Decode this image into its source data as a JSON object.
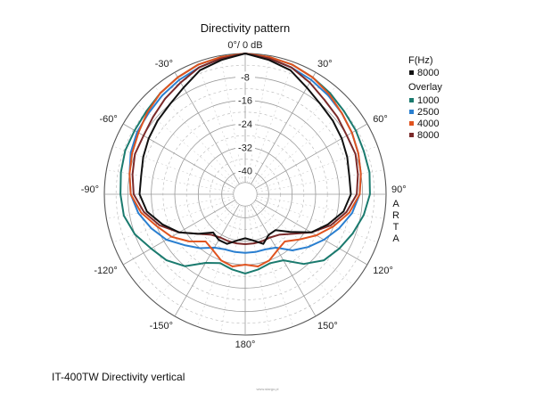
{
  "chart_data": {
    "type": "polar",
    "title": "Directivity pattern",
    "angle_labels": [
      "0°/ 0 dB",
      "30°",
      "60°",
      "90°",
      "120°",
      "150°",
      "180°",
      "150°",
      "120°",
      "90°",
      "60°",
      "30°"
    ],
    "angle_labels_signed": [
      "0°/ 0 dB",
      "30°",
      "60°",
      "90°",
      "120°",
      "150°",
      "180°",
      "-150°",
      "-120°",
      "-90°",
      "-60°",
      "-30°"
    ],
    "ring_labels": [
      "-8",
      "-16",
      "-24",
      "-32",
      "-40"
    ],
    "r_range_db": [
      -48,
      0
    ],
    "side_label": "ARTA",
    "legend": {
      "header1": "F(Hz)",
      "main": [
        {
          "name": "8000",
          "color": "#111111"
        }
      ],
      "header2": "Overlay",
      "overlay": [
        {
          "name": "1000",
          "color": "#1a7a6e"
        },
        {
          "name": "2500",
          "color": "#2a7fd0"
        },
        {
          "name": "4000",
          "color": "#e0531f"
        },
        {
          "name": "8000",
          "color": "#7a2a2a"
        }
      ]
    },
    "series": [
      {
        "name": "1000",
        "color": "#1a7a6e",
        "angles_deg": [
          0,
          10,
          20,
          30,
          40,
          50,
          60,
          70,
          80,
          90,
          100,
          110,
          120,
          130,
          140,
          150,
          160,
          170,
          180
        ],
        "right_db": [
          0,
          -0.5,
          -1,
          -2,
          -3,
          -4,
          -4.5,
          -5,
          -5,
          -5.5,
          -7,
          -9,
          -11,
          -13,
          -17,
          -22,
          -23,
          -22,
          -21
        ],
        "left_db": [
          0,
          -0.5,
          -1,
          -2,
          -3,
          -4,
          -4.5,
          -4.5,
          -5,
          -5.5,
          -6,
          -8,
          -11,
          -13,
          -16,
          -21,
          -23,
          -22,
          -21
        ]
      },
      {
        "name": "2500",
        "color": "#2a7fd0",
        "angles_deg": [
          0,
          10,
          20,
          30,
          40,
          50,
          60,
          70,
          80,
          90,
          100,
          110,
          120,
          130,
          140,
          150,
          160,
          170,
          180
        ],
        "right_db": [
          0,
          -1,
          -2,
          -3,
          -4,
          -5,
          -6,
          -7,
          -8,
          -9,
          -11,
          -14,
          -17,
          -20,
          -23,
          -27,
          -28,
          -28,
          -28
        ],
        "left_db": [
          0,
          -1,
          -2,
          -3,
          -4,
          -5,
          -5.5,
          -6.5,
          -8,
          -9,
          -11,
          -14,
          -17,
          -21,
          -24,
          -27,
          -28,
          -28,
          -28
        ]
      },
      {
        "name": "4000",
        "color": "#e0531f",
        "angles_deg": [
          0,
          10,
          20,
          30,
          40,
          50,
          60,
          70,
          80,
          90,
          100,
          110,
          120,
          130,
          140,
          150,
          160,
          170,
          180
        ],
        "right_db": [
          0,
          -0.5,
          -1,
          -2,
          -3.5,
          -5,
          -6,
          -7,
          -8,
          -9,
          -12,
          -16,
          -20,
          -24,
          -27,
          -26,
          -24,
          -23,
          -24
        ],
        "left_db": [
          0,
          -0.5,
          -1,
          -2,
          -3,
          -4.5,
          -6,
          -7,
          -8,
          -9,
          -12,
          -16,
          -19,
          -23,
          -27,
          -26,
          -24,
          -23,
          -24
        ]
      },
      {
        "name": "8000",
        "color": "#7a2a2a",
        "angles_deg": [
          0,
          10,
          20,
          30,
          40,
          50,
          60,
          70,
          80,
          90,
          100,
          110,
          120,
          130,
          140,
          150,
          160,
          170,
          180
        ],
        "right_db": [
          0,
          -1,
          -2,
          -4,
          -6,
          -7,
          -8,
          -8,
          -9,
          -10,
          -13,
          -17,
          -22,
          -27,
          -30,
          -31,
          -31,
          -31,
          -31
        ],
        "left_db": [
          0,
          -1,
          -2,
          -4,
          -5.5,
          -7,
          -8,
          -8,
          -9,
          -10,
          -13,
          -17,
          -22,
          -27,
          -30,
          -31,
          -31,
          -31,
          -31
        ]
      },
      {
        "name": "8000 (F)",
        "color": "#111111",
        "angles_deg": [
          0,
          10,
          20,
          30,
          40,
          50,
          60,
          70,
          80,
          90,
          100,
          110,
          120,
          130,
          140,
          150,
          160,
          170,
          180
        ],
        "right_db": [
          0,
          -1.5,
          -3,
          -6,
          -8,
          -9,
          -10,
          -11,
          -12,
          -12,
          -14,
          -18,
          -22,
          -28,
          -32,
          -32,
          -30,
          -32,
          -33
        ],
        "left_db": [
          0,
          -1.5,
          -3,
          -6,
          -8,
          -9,
          -10,
          -11,
          -12,
          -12,
          -14,
          -18,
          -22,
          -27,
          -31,
          -30,
          -30,
          -32,
          -33
        ]
      }
    ]
  },
  "footer": "IT-400TW Directivity vertical",
  "watermark": "www.stargo.pl"
}
